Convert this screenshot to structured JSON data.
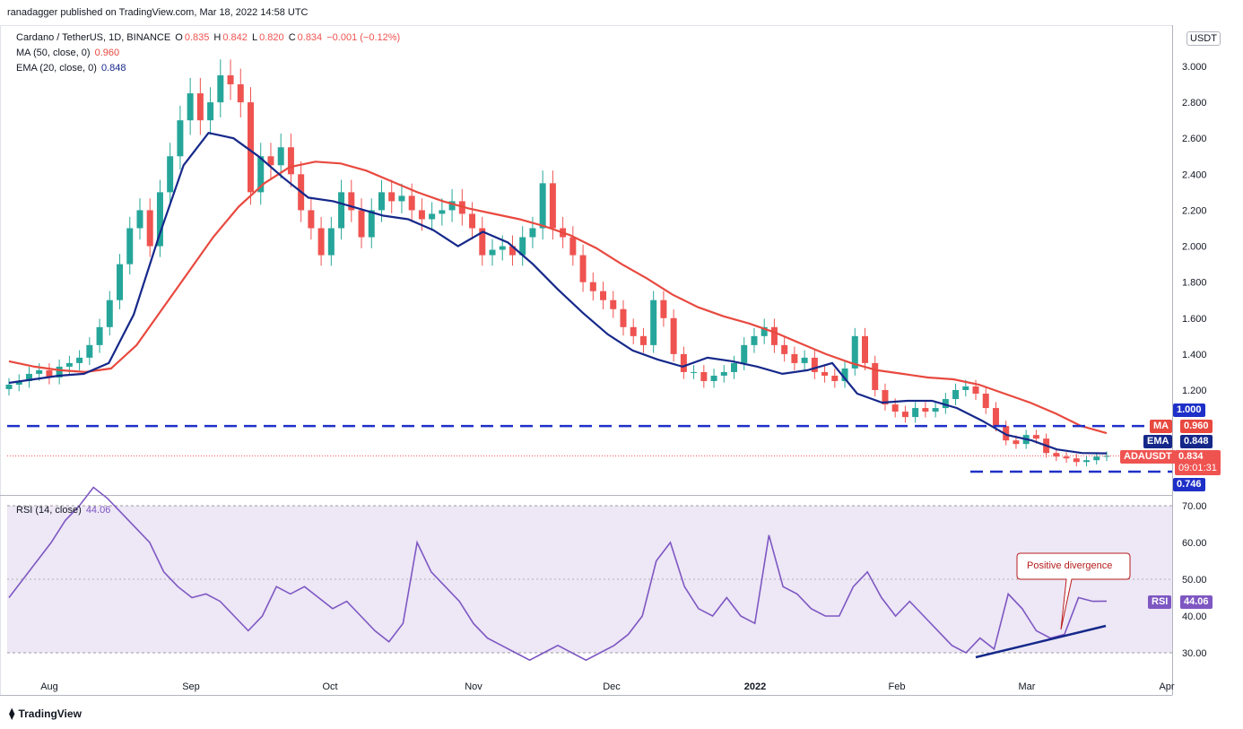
{
  "header": {
    "published": "ranadagger published on TradingView.com, Mar 18, 2022 14:58 UTC"
  },
  "legend": {
    "symbol": "Cardano / TetherUS, 1D, BINANCE",
    "o_label": "O",
    "o": "0.835",
    "h_label": "H",
    "h": "0.842",
    "l_label": "L",
    "l": "0.820",
    "c_label": "C",
    "c": "0.834",
    "change": "−0.001 (−0.12%)",
    "ma_label": "MA (50, close, 0)",
    "ma_value": "0.960",
    "ema_label": "EMA (20, close, 0)",
    "ema_value": "0.848",
    "rsi_label": "RSI (14, close)",
    "rsi_value": "44.06"
  },
  "currency": "USDT",
  "badges": {
    "level_high": "1.000",
    "ma_tag": "MA",
    "ma_val": "0.960",
    "ema_tag": "EMA",
    "ema_val": "0.848",
    "pair_tag": "ADAUSDT",
    "pair_val": "0.834",
    "countdown": "09:01:31",
    "level_low": "0.746",
    "rsi_tag": "RSI",
    "rsi_val": "44.06"
  },
  "annotation": "Positive divergence",
  "branding": "TradingView",
  "colors": {
    "up": "#26a69a",
    "down": "#ef5350",
    "ma": "#e8493f",
    "ema": "#15288a",
    "rsi": "#7e57c2",
    "level": "#1e30c8",
    "rsi_bg": "#ede7f6"
  },
  "chart_data": {
    "type": "candlestick",
    "price_axis": {
      "ticks": [
        "3.000",
        "2.800",
        "2.600",
        "2.400",
        "2.200",
        "2.000",
        "1.800",
        "1.600",
        "1.400",
        "1.200"
      ],
      "range": [
        0.7,
        3.1
      ]
    },
    "rsi_axis": {
      "ticks": [
        "70.00",
        "60.00",
        "50.00",
        "40.00",
        "30.00"
      ],
      "range": [
        25,
        72
      ],
      "bands": [
        30,
        70
      ]
    },
    "x_labels": [
      "Aug",
      "Sep",
      "Oct",
      "Nov",
      "Dec",
      "2022",
      "Feb",
      "Mar",
      "Apr"
    ],
    "horizontal_levels": [
      1.0,
      0.746
    ],
    "close_series": [
      1.23,
      1.25,
      1.29,
      1.31,
      1.27,
      1.33,
      1.35,
      1.38,
      1.45,
      1.55,
      1.7,
      1.9,
      2.1,
      2.2,
      2.0,
      2.3,
      2.5,
      2.7,
      2.85,
      2.7,
      2.8,
      2.95,
      2.9,
      2.8,
      2.3,
      2.5,
      2.45,
      2.55,
      2.4,
      2.2,
      2.1,
      1.95,
      2.1,
      2.3,
      2.2,
      2.05,
      2.2,
      2.3,
      2.25,
      2.28,
      2.2,
      2.15,
      2.18,
      2.2,
      2.25,
      2.18,
      2.1,
      1.95,
      1.98,
      2.0,
      1.95,
      2.05,
      2.1,
      2.35,
      2.1,
      2.05,
      1.95,
      1.8,
      1.75,
      1.7,
      1.65,
      1.55,
      1.5,
      1.45,
      1.7,
      1.6,
      1.4,
      1.3,
      1.3,
      1.25,
      1.28,
      1.3,
      1.35,
      1.45,
      1.5,
      1.55,
      1.45,
      1.4,
      1.35,
      1.38,
      1.3,
      1.28,
      1.25,
      1.32,
      1.5,
      1.35,
      1.2,
      1.12,
      1.08,
      1.05,
      1.1,
      1.08,
      1.1,
      1.15,
      1.2,
      1.22,
      1.18,
      1.1,
      1.0,
      0.92,
      0.9,
      0.95,
      0.93,
      0.85,
      0.83,
      0.82,
      0.8,
      0.81,
      0.83,
      0.834
    ],
    "ma_series": [
      1.36,
      1.33,
      1.31,
      1.3,
      1.32,
      1.45,
      1.65,
      1.85,
      2.05,
      2.22,
      2.35,
      2.44,
      2.47,
      2.46,
      2.42,
      2.36,
      2.3,
      2.25,
      2.21,
      2.18,
      2.15,
      2.11,
      2.06,
      1.99,
      1.9,
      1.82,
      1.73,
      1.66,
      1.61,
      1.57,
      1.52,
      1.46,
      1.4,
      1.35,
      1.31,
      1.29,
      1.27,
      1.26,
      1.23,
      1.18,
      1.13,
      1.07,
      1.0,
      0.96
    ],
    "ema_series": [
      1.24,
      1.26,
      1.28,
      1.29,
      1.35,
      1.62,
      2.05,
      2.45,
      2.63,
      2.6,
      2.5,
      2.38,
      2.27,
      2.25,
      2.21,
      2.17,
      2.15,
      2.09,
      2.0,
      2.08,
      2.02,
      1.9,
      1.76,
      1.63,
      1.51,
      1.42,
      1.37,
      1.33,
      1.38,
      1.36,
      1.33,
      1.29,
      1.31,
      1.35,
      1.18,
      1.13,
      1.14,
      1.14,
      1.1,
      1.03,
      0.95,
      0.92,
      0.87,
      0.85,
      0.848
    ],
    "rsi_series": [
      45,
      50,
      55,
      60,
      66,
      70,
      75,
      72,
      68,
      64,
      60,
      52,
      48,
      45,
      46,
      44,
      40,
      36,
      40,
      48,
      46,
      48,
      45,
      42,
      44,
      40,
      36,
      33,
      38,
      60,
      52,
      48,
      44,
      38,
      34,
      32,
      30,
      28,
      30,
      32,
      30,
      28,
      30,
      32,
      35,
      40,
      55,
      60,
      48,
      42,
      40,
      45,
      40,
      38,
      62,
      48,
      46,
      42,
      40,
      40,
      48,
      52,
      45,
      40,
      44,
      40,
      36,
      32,
      30,
      34,
      31,
      46,
      42,
      36,
      34,
      35,
      45,
      44,
      44.06
    ]
  }
}
